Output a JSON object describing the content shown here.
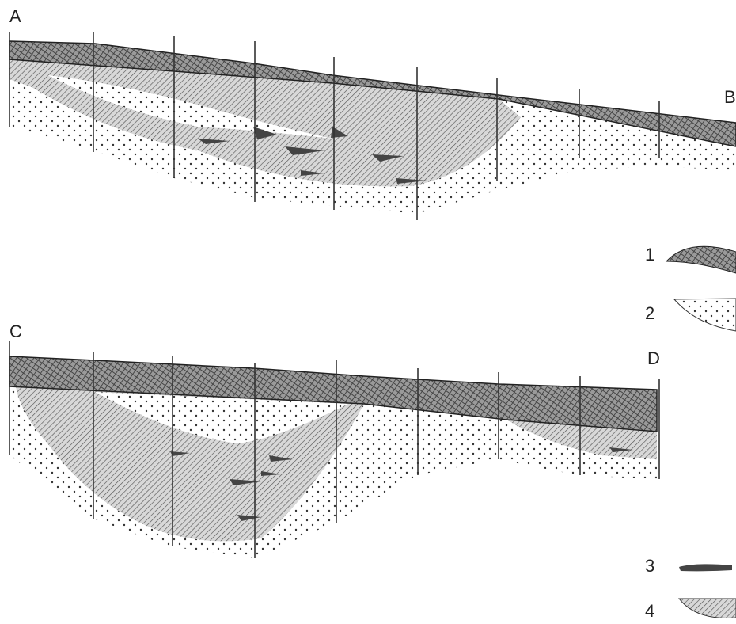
{
  "sections": [
    {
      "start_label": "A",
      "end_label": "B"
    },
    {
      "start_label": "C",
      "end_label": "D"
    }
  ],
  "legend": [
    {
      "label": "1"
    },
    {
      "label": "2"
    },
    {
      "label": "3"
    },
    {
      "label": "4"
    }
  ]
}
